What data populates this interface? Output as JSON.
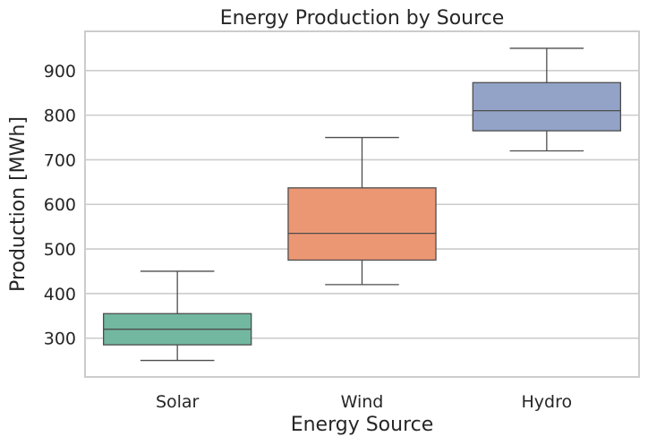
{
  "chart_data": {
    "type": "box",
    "title": "Energy Production by Source",
    "xlabel": "Energy Source",
    "ylabel": "Production [MWh]",
    "categories": [
      "Solar",
      "Wind",
      "Hydro"
    ],
    "boxes": [
      {
        "category": "Solar",
        "min": 250,
        "q1": 285,
        "median": 320,
        "q3": 355,
        "max": 450,
        "color": "#72b7a0"
      },
      {
        "category": "Wind",
        "min": 420,
        "q1": 475,
        "median": 535,
        "q3": 637,
        "max": 750,
        "color": "#ec9774"
      },
      {
        "category": "Hydro",
        "min": 720,
        "q1": 765,
        "median": 810,
        "q3": 873,
        "max": 950,
        "color": "#93a3c7"
      }
    ],
    "yticks": [
      300,
      400,
      500,
      600,
      700,
      800,
      900
    ],
    "ylim": [
      213,
      988
    ],
    "grid": "horizontal",
    "legend": "none"
  }
}
